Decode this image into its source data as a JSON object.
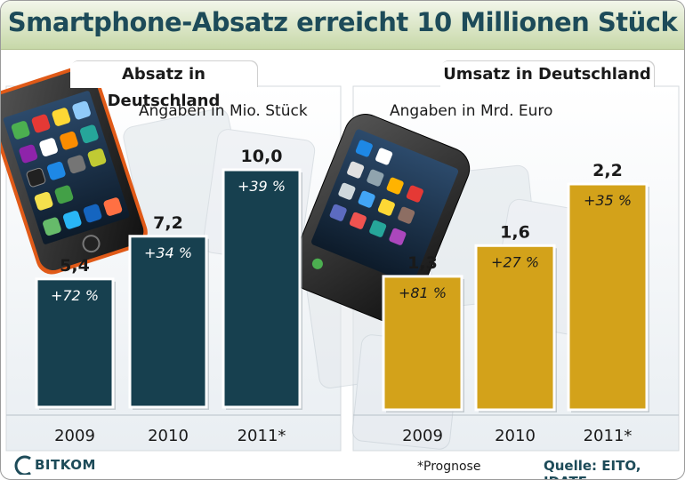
{
  "title": "Smartphone-Absatz erreicht 10 Millionen Stück",
  "footnote": "*Prognose",
  "source": "Quelle: EITO, IDATE",
  "brand": "BITKOM",
  "colors": {
    "left_bar": "#17404f",
    "right_bar": "#d3a21a",
    "title_text": "#1d4b59"
  },
  "chart_data": [
    {
      "type": "bar",
      "title": "Absatz in Deutschland",
      "ylabel": "Angaben in Mio. Stück",
      "categories": [
        "2009",
        "2010",
        "2011*"
      ],
      "values": [
        5.4,
        7.2,
        10.0
      ],
      "value_labels": [
        "5,4",
        "7,2",
        "10,0"
      ],
      "growth_labels": [
        "+72 %",
        "+34 %",
        "+39 %"
      ],
      "ylim": [
        0,
        10
      ]
    },
    {
      "type": "bar",
      "title": "Umsatz in Deutschland",
      "ylabel": "Angaben in Mrd. Euro",
      "categories": [
        "2009",
        "2010",
        "2011*"
      ],
      "values": [
        1.3,
        1.6,
        2.2
      ],
      "value_labels": [
        "1,3",
        "1,6",
        "2,2"
      ],
      "growth_labels": [
        "+81 %",
        "+27 %",
        "+35 %"
      ],
      "ylim": [
        0,
        2.2
      ]
    }
  ]
}
